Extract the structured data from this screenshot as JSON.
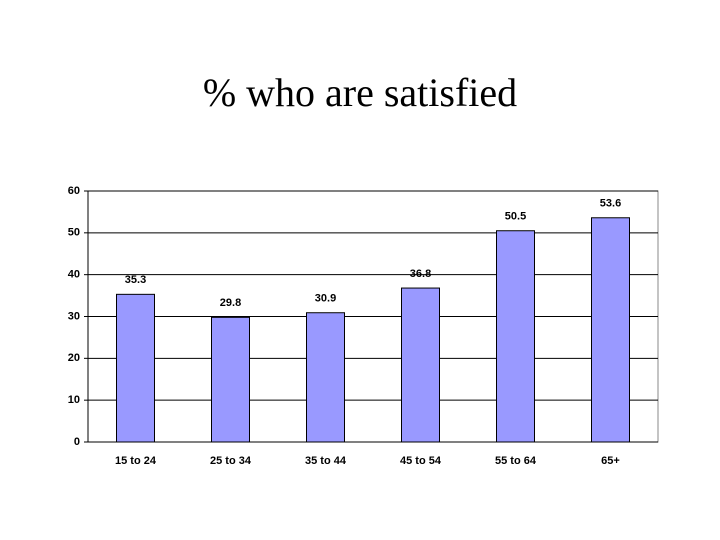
{
  "chart_data": {
    "type": "bar",
    "title": "% who are satisfied",
    "categories": [
      "15 to 24",
      "25 to 34",
      "35 to 44",
      "45 to 54",
      "55 to 64",
      "65+"
    ],
    "values": [
      35.3,
      29.8,
      30.9,
      36.8,
      50.5,
      53.6
    ],
    "color": "#9999ff",
    "ylim": [
      0,
      60
    ],
    "yticks": [
      0,
      10,
      20,
      30,
      40,
      50,
      60
    ],
    "grid": true
  }
}
